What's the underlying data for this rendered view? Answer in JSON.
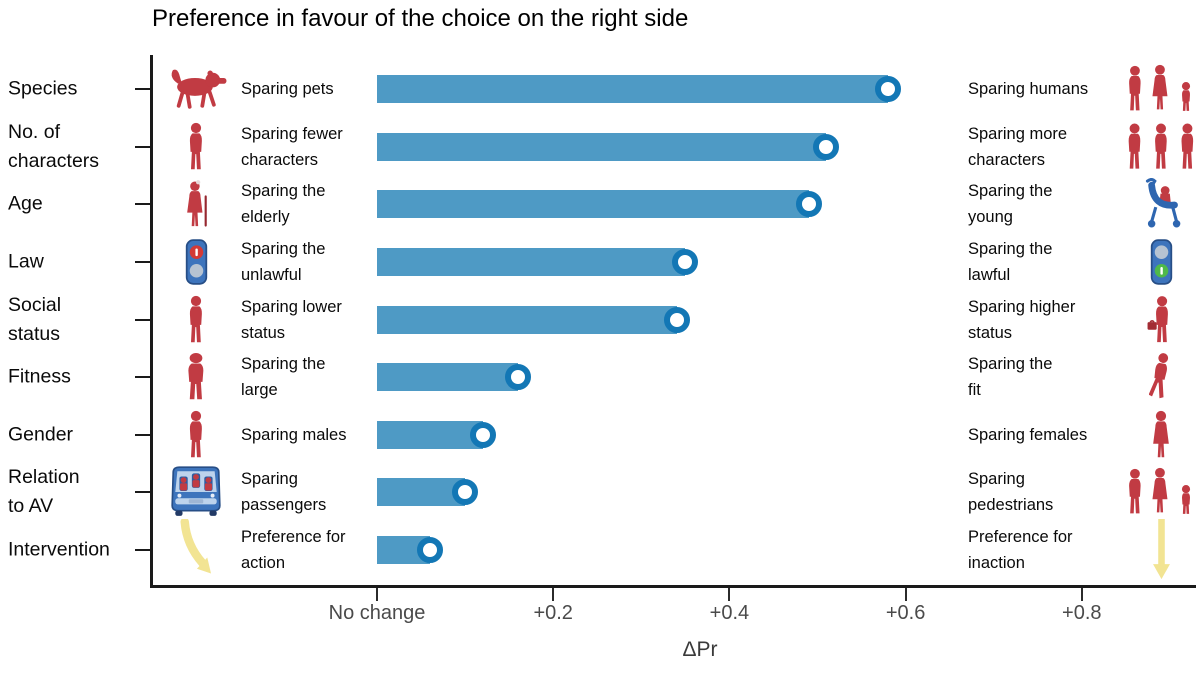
{
  "title": "Preference in favour of the choice on the right side",
  "axis": {
    "xlabel": "ΔPr",
    "ticks": [
      {
        "label": "No change",
        "value": 0
      },
      {
        "label": "+0.2",
        "value": 0.2
      },
      {
        "label": "+0.4",
        "value": 0.4
      },
      {
        "label": "+0.6",
        "value": 0.6
      },
      {
        "label": "+0.8",
        "value": 0.8
      }
    ]
  },
  "rows": [
    {
      "category": "Species",
      "left_label": "Sparing pets",
      "right_label": "Sparing humans",
      "value": 0.58,
      "left_icon": "dog-icon",
      "right_icon": "humans-group-icon"
    },
    {
      "category": "No. of\ncharacters",
      "left_label": "Sparing fewer\ncharacters",
      "right_label": "Sparing more\ncharacters",
      "value": 0.51,
      "left_icon": "person-icon",
      "right_icon": "three-persons-icon"
    },
    {
      "category": "Age",
      "left_label": "Sparing the\nelderly",
      "right_label": "Sparing the\nyoung",
      "value": 0.49,
      "left_icon": "elderly-person-icon",
      "right_icon": "stroller-icon"
    },
    {
      "category": "Law",
      "left_label": "Sparing the\nunlawful",
      "right_label": "Sparing the\nlawful",
      "value": 0.35,
      "left_icon": "traffic-light-red-icon",
      "right_icon": "traffic-light-green-icon"
    },
    {
      "category": "Social\nstatus",
      "left_label": "Sparing lower\nstatus",
      "right_label": "Sparing higher\nstatus",
      "value": 0.34,
      "left_icon": "person-icon",
      "right_icon": "businessperson-icon"
    },
    {
      "category": "Fitness",
      "left_label": "Sparing the\nlarge",
      "right_label": "Sparing the\nfit",
      "value": 0.16,
      "left_icon": "large-person-icon",
      "right_icon": "runner-icon"
    },
    {
      "category": "Gender",
      "left_label": "Sparing males",
      "right_label": "Sparing females",
      "value": 0.12,
      "left_icon": "male-person-icon",
      "right_icon": "female-person-icon"
    },
    {
      "category": "Relation\nto AV",
      "left_label": "Sparing\npassengers",
      "right_label": "Sparing\npedestrians",
      "value": 0.1,
      "left_icon": "av-vehicle-icon",
      "right_icon": "pedestrians-group-icon"
    },
    {
      "category": "Intervention",
      "left_label": "Preference for\naction",
      "right_label": "Preference for\ninaction",
      "value": 0.06,
      "left_icon": "swerve-arrow-icon",
      "right_icon": "straight-arrow-icon"
    }
  ],
  "colors": {
    "bar": "#4E9AC5",
    "marker_ring": "#1377B5",
    "icon_red": "#C13B43",
    "icon_blue": "#3D74BC",
    "arrow_yellow": "#F2E493"
  },
  "chart_data": {
    "type": "bar",
    "orientation": "horizontal",
    "title": "Preference in favour of the choice on the right side",
    "xlabel": "ΔPr",
    "xlim": [
      -0.26,
      0.93
    ],
    "xticks": [
      0,
      0.2,
      0.4,
      0.6,
      0.8
    ],
    "xtick_labels": [
      "No change",
      "+0.2",
      "+0.4",
      "+0.6",
      "+0.8"
    ],
    "grid": false,
    "categories": [
      "Species",
      "No. of characters",
      "Age",
      "Law",
      "Social status",
      "Fitness",
      "Gender",
      "Relation to AV",
      "Intervention"
    ],
    "values": [
      0.58,
      0.51,
      0.49,
      0.35,
      0.34,
      0.16,
      0.12,
      0.1,
      0.06
    ],
    "left_choices": [
      "Sparing pets",
      "Sparing fewer characters",
      "Sparing the elderly",
      "Sparing the unlawful",
      "Sparing lower status",
      "Sparing the large",
      "Sparing males",
      "Sparing passengers",
      "Preference for action"
    ],
    "right_choices": [
      "Sparing humans",
      "Sparing more characters",
      "Sparing the young",
      "Sparing the lawful",
      "Sparing higher status",
      "Sparing the fit",
      "Sparing females",
      "Sparing pedestrians",
      "Preference for inaction"
    ],
    "marker": "open circle at bar end"
  }
}
